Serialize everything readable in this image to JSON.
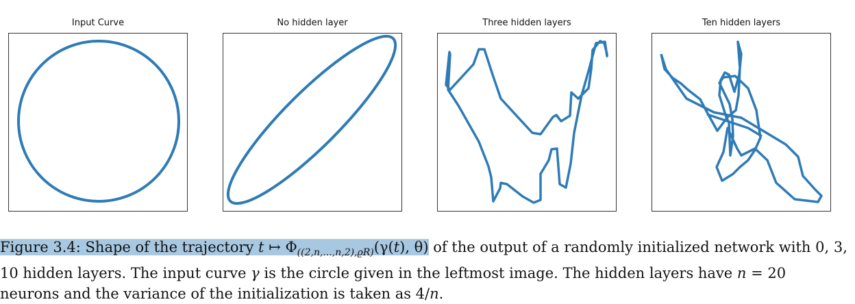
{
  "panels": [
    {
      "title": "Input Curve"
    },
    {
      "title": "No hidden layer"
    },
    {
      "title": "Three hidden layers"
    },
    {
      "title": "Ten hidden layers"
    }
  ],
  "caption": {
    "prefix": "Figure 3.4: Shape of the trajectory ",
    "t1": "t",
    "maps": " ↦ ",
    "phi": "Φ",
    "phi_sub": "((2,n,...,n,2),ϱR)",
    "args_open": "(γ(",
    "t2": "t",
    "args_mid": "), θ)",
    "rest1": " of the output of a randomly initialized network with 0, 3, 10 hidden layers. The input curve ",
    "gamma": "γ",
    "rest2": " is the circle given in the leftmost image. The hidden layers have ",
    "n1": "n",
    "rest3": " = 20 neurons and the variance of the initialization is taken as 4/",
    "n2": "n",
    "rest4": "."
  },
  "colors": {
    "curve": "#2e7bb6",
    "highlight": "#a8c8e2"
  }
}
